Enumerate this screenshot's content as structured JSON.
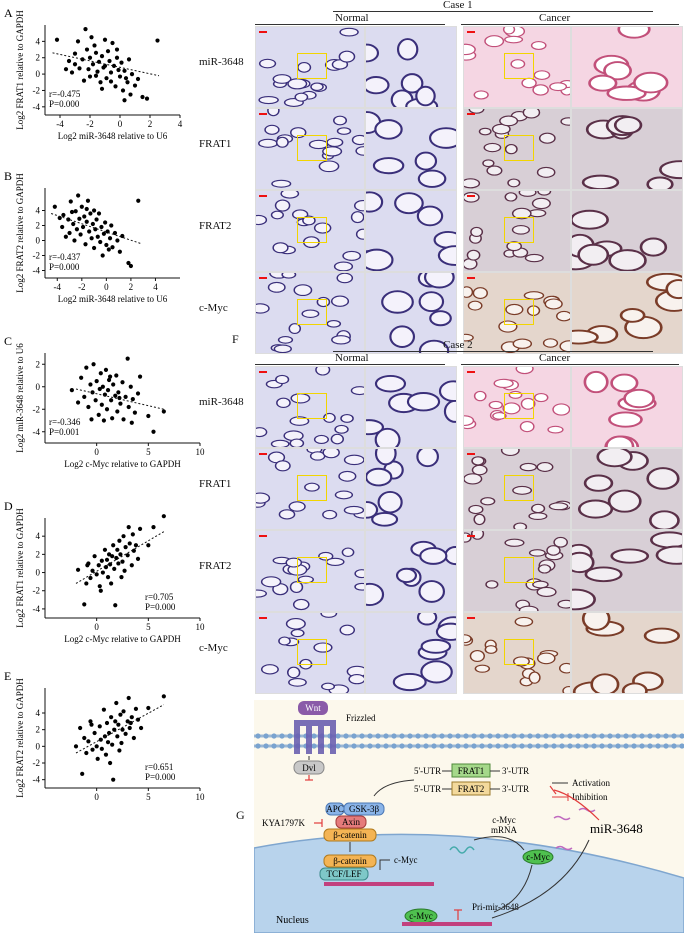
{
  "scatter_panels": {
    "A": {
      "letter": "A",
      "ylabel": "Log2 FRAT1 relative to GAPDH",
      "xlabel": "Log2 miR-3648 relative to U6",
      "r": "r=-0.475",
      "p": "P=0.000",
      "xticks": [
        "-4",
        "-2",
        "0",
        "2",
        "4"
      ],
      "yticks": [
        "4",
        "2",
        "0",
        "-2",
        "-4"
      ]
    },
    "B": {
      "letter": "B",
      "ylabel": "Log2 FRAT2 relative to GAPDH",
      "xlabel": "Log2 miR-3648 relative to U6",
      "r": "r=-0.437",
      "p": "P=0.000",
      "xticks": [
        "-4",
        "-2",
        "0",
        "2",
        "4"
      ],
      "yticks": [
        "4",
        "2",
        "0",
        "-2",
        "-4"
      ]
    },
    "C": {
      "letter": "C",
      "ylabel": "Log2 miR-3648 relative to U6",
      "xlabel": "Log2 c-Myc relative to GAPDH",
      "r": "r=-0.346",
      "p": "P=0.001",
      "xticks": [
        "0",
        "5",
        "10"
      ],
      "yticks": [
        "2",
        "0",
        "-2",
        "-4"
      ]
    },
    "D": {
      "letter": "D",
      "ylabel": "Log2 FRAT1 relative to GAPDH",
      "xlabel": "Log2 c-Myc relative to GAPDH",
      "r": "r=0.705",
      "p": "P=0.000",
      "xticks": [
        "0",
        "5",
        "10"
      ],
      "yticks": [
        "4",
        "2",
        "0",
        "-2",
        "-4"
      ]
    },
    "E": {
      "letter": "E",
      "ylabel": "Log2 FRAT2 relative to GAPDH",
      "xlabel": "Log2 c-Myc relative to GAPDH",
      "r": "r=0.651",
      "p": "P=0.000",
      "xticks": [
        "0",
        "5",
        "10"
      ],
      "yticks": [
        "4",
        "2",
        "0",
        "-2",
        "-4"
      ]
    }
  },
  "chart_data": [
    {
      "type": "scatter",
      "panel": "A",
      "xlim": [
        -5,
        4
      ],
      "ylim": [
        -5,
        6
      ],
      "trend": [
        [
          -4.5,
          2.6
        ],
        [
          2.6,
          -0.2
        ]
      ],
      "points": [
        [
          -4.2,
          4.2
        ],
        [
          -3.6,
          0.6
        ],
        [
          -3.4,
          1.6
        ],
        [
          -3.2,
          0.2
        ],
        [
          -3.0,
          2.5
        ],
        [
          -2.8,
          4.0
        ],
        [
          -2.7,
          0.7
        ],
        [
          -2.5,
          1.8
        ],
        [
          -2.3,
          5.5
        ],
        [
          -2.2,
          3.0
        ],
        [
          -2.0,
          2.0
        ],
        [
          -2.0,
          -0.3
        ],
        [
          -1.9,
          4.5
        ],
        [
          -1.8,
          1.2
        ],
        [
          -1.7,
          3.5
        ],
        [
          -1.6,
          2.6
        ],
        [
          -1.5,
          0.3
        ],
        [
          -1.4,
          1.5
        ],
        [
          -1.3,
          -1.0
        ],
        [
          -1.2,
          2.2
        ],
        [
          -1.1,
          0.8
        ],
        [
          -1.0,
          4.2
        ],
        [
          -1.0,
          1.0
        ],
        [
          -0.9,
          -0.5
        ],
        [
          -0.8,
          2.8
        ],
        [
          -0.7,
          1.6
        ],
        [
          -0.6,
          0.2
        ],
        [
          -0.5,
          3.8
        ],
        [
          -0.4,
          1.0
        ],
        [
          -0.3,
          -1.5
        ],
        [
          -0.2,
          2.0
        ],
        [
          -0.1,
          0.5
        ],
        [
          0.0,
          -0.3
        ],
        [
          0.1,
          1.4
        ],
        [
          0.2,
          -2.0
        ],
        [
          0.3,
          0.4
        ],
        [
          0.4,
          -0.5
        ],
        [
          0.5,
          -1.0
        ],
        [
          0.6,
          1.8
        ],
        [
          0.7,
          -2.5
        ],
        [
          0.8,
          0.0
        ],
        [
          1.0,
          -1.4
        ],
        [
          1.2,
          -0.6
        ],
        [
          1.5,
          -2.8
        ],
        [
          1.8,
          -3.0
        ],
        [
          2.5,
          4.1
        ],
        [
          -2.4,
          -0.8
        ],
        [
          -1.6,
          -0.2
        ],
        [
          -0.2,
          3.0
        ],
        [
          -3.0,
          1.2
        ],
        [
          -2.1,
          0.6
        ],
        [
          -1.2,
          -1.8
        ],
        [
          0.3,
          -3.2
        ],
        [
          -0.6,
          -0.9
        ]
      ]
    },
    {
      "type": "scatter",
      "panel": "B",
      "xlim": [
        -5,
        6
      ],
      "ylim": [
        -5,
        7
      ],
      "trend": [
        [
          -4.5,
          3.6
        ],
        [
          2.8,
          -0.4
        ]
      ],
      "points": [
        [
          -4.2,
          4.5
        ],
        [
          -3.6,
          1.8
        ],
        [
          -3.5,
          3.4
        ],
        [
          -3.3,
          0.5
        ],
        [
          -3.1,
          2.8
        ],
        [
          -3.0,
          1.0
        ],
        [
          -2.9,
          5.2
        ],
        [
          -2.7,
          2.2
        ],
        [
          -2.6,
          0.0
        ],
        [
          -2.5,
          3.9
        ],
        [
          -2.4,
          1.5
        ],
        [
          -2.3,
          6.0
        ],
        [
          -2.2,
          2.9
        ],
        [
          -2.1,
          0.8
        ],
        [
          -2.0,
          4.5
        ],
        [
          -1.9,
          1.8
        ],
        [
          -1.8,
          3.2
        ],
        [
          -1.7,
          -0.5
        ],
        [
          -1.6,
          2.5
        ],
        [
          -1.5,
          5.3
        ],
        [
          -1.4,
          1.2
        ],
        [
          -1.3,
          3.6
        ],
        [
          -1.2,
          0.3
        ],
        [
          -1.1,
          2.2
        ],
        [
          -1.0,
          4.0
        ],
        [
          -1.0,
          -1.0
        ],
        [
          -0.9,
          1.5
        ],
        [
          -0.8,
          2.8
        ],
        [
          -0.7,
          0.5
        ],
        [
          -0.6,
          3.6
        ],
        [
          -0.5,
          -0.2
        ],
        [
          -0.4,
          1.8
        ],
        [
          -0.3,
          -2.0
        ],
        [
          -0.2,
          0.9
        ],
        [
          -0.1,
          2.4
        ],
        [
          0.0,
          -0.6
        ],
        [
          0.1,
          1.2
        ],
        [
          0.2,
          -1.2
        ],
        [
          0.3,
          0.3
        ],
        [
          0.5,
          -0.9
        ],
        [
          0.7,
          1.0
        ],
        [
          0.9,
          0.0
        ],
        [
          1.1,
          -1.5
        ],
        [
          1.3,
          0.6
        ],
        [
          1.8,
          -3.0
        ],
        [
          2.0,
          -3.4
        ],
        [
          2.6,
          5.3
        ],
        [
          -3.8,
          3.0
        ],
        [
          -2.8,
          3.8
        ],
        [
          -1.6,
          4.2
        ],
        [
          0.4,
          2.0
        ]
      ]
    },
    {
      "type": "scatter",
      "panel": "C",
      "xlim": [
        -5,
        10
      ],
      "ylim": [
        -5,
        3
      ],
      "trend": [
        [
          -2,
          -0.2
        ],
        [
          6.5,
          -2.0
        ]
      ],
      "points": [
        [
          -2.4,
          -0.3
        ],
        [
          -1.8,
          -1.4
        ],
        [
          -1.5,
          0.8
        ],
        [
          -1.2,
          -0.9
        ],
        [
          -1.0,
          1.7
        ],
        [
          -0.8,
          -1.8
        ],
        [
          -0.6,
          0.2
        ],
        [
          -0.4,
          -0.5
        ],
        [
          -0.3,
          2.0
        ],
        [
          -0.1,
          -1.2
        ],
        [
          0.0,
          0.5
        ],
        [
          0.2,
          -2.5
        ],
        [
          0.3,
          -0.2
        ],
        [
          0.4,
          1.2
        ],
        [
          0.5,
          -1.6
        ],
        [
          0.6,
          0.0
        ],
        [
          0.8,
          -0.7
        ],
        [
          0.9,
          1.5
        ],
        [
          1.0,
          -2.0
        ],
        [
          1.1,
          -0.3
        ],
        [
          1.2,
          0.6
        ],
        [
          1.4,
          -1.2
        ],
        [
          1.5,
          -2.8
        ],
        [
          1.6,
          0.2
        ],
        [
          1.8,
          -0.8
        ],
        [
          1.9,
          1.0
        ],
        [
          2.0,
          -2.2
        ],
        [
          2.1,
          -0.5
        ],
        [
          2.3,
          -1.5
        ],
        [
          2.5,
          0.4
        ],
        [
          2.6,
          -2.9
        ],
        [
          2.8,
          -0.9
        ],
        [
          3.0,
          2.5
        ],
        [
          3.1,
          -1.8
        ],
        [
          3.3,
          0.0
        ],
        [
          3.5,
          -1.1
        ],
        [
          3.7,
          -2.3
        ],
        [
          4.0,
          -0.6
        ],
        [
          4.2,
          0.9
        ],
        [
          5.0,
          -2.6
        ],
        [
          5.5,
          -4.0
        ],
        [
          6.5,
          -2.2
        ],
        [
          -0.5,
          -2.9
        ],
        [
          1.3,
          0.9
        ],
        [
          2.2,
          -1.0
        ],
        [
          0.7,
          -3.0
        ],
        [
          3.4,
          -3.2
        ]
      ]
    },
    {
      "type": "scatter",
      "panel": "D",
      "xlim": [
        -5,
        10
      ],
      "ylim": [
        -5,
        6
      ],
      "trend": [
        [
          -2,
          -1.2
        ],
        [
          6.5,
          4.5
        ]
      ],
      "points": [
        [
          -1.8,
          0.3
        ],
        [
          -1.2,
          -3.5
        ],
        [
          -1.0,
          -1.2
        ],
        [
          -0.8,
          1.0
        ],
        [
          -0.6,
          -0.6
        ],
        [
          -0.4,
          0.2
        ],
        [
          -0.2,
          1.8
        ],
        [
          0.0,
          -0.2
        ],
        [
          0.2,
          0.8
        ],
        [
          0.3,
          -1.5
        ],
        [
          0.5,
          1.3
        ],
        [
          0.6,
          0.0
        ],
        [
          0.8,
          2.5
        ],
        [
          0.9,
          0.6
        ],
        [
          1.0,
          1.4
        ],
        [
          1.1,
          -0.5
        ],
        [
          1.2,
          2.0
        ],
        [
          1.3,
          0.9
        ],
        [
          1.5,
          1.8
        ],
        [
          1.6,
          3.0
        ],
        [
          1.7,
          0.4
        ],
        [
          1.8,
          -3.6
        ],
        [
          1.9,
          1.6
        ],
        [
          2.0,
          2.5
        ],
        [
          2.1,
          1.0
        ],
        [
          2.2,
          3.5
        ],
        [
          2.3,
          2.0
        ],
        [
          2.5,
          1.2
        ],
        [
          2.6,
          4.0
        ],
        [
          2.8,
          2.8
        ],
        [
          3.0,
          1.9
        ],
        [
          3.2,
          3.2
        ],
        [
          3.4,
          0.8
        ],
        [
          3.5,
          4.2
        ],
        [
          3.6,
          2.4
        ],
        [
          3.8,
          3.0
        ],
        [
          4.0,
          1.5
        ],
        [
          4.2,
          4.8
        ],
        [
          5.0,
          3.0
        ],
        [
          5.5,
          5.0
        ],
        [
          6.5,
          6.2
        ],
        [
          -0.9,
          0.8
        ],
        [
          1.4,
          -1.2
        ],
        [
          2.4,
          -0.5
        ],
        [
          2.7,
          0.2
        ],
        [
          0.4,
          -2.0
        ],
        [
          3.1,
          5.0
        ]
      ]
    },
    {
      "type": "scatter",
      "panel": "E",
      "xlim": [
        -5,
        10
      ],
      "ylim": [
        -5,
        7
      ],
      "trend": [
        [
          -2,
          -0.8
        ],
        [
          6.5,
          5.0
        ]
      ],
      "points": [
        [
          -2.0,
          0.0
        ],
        [
          -1.6,
          2.2
        ],
        [
          -1.4,
          -3.3
        ],
        [
          -1.2,
          1.0
        ],
        [
          -1.0,
          -0.8
        ],
        [
          -0.8,
          0.6
        ],
        [
          -0.6,
          3.0
        ],
        [
          -0.4,
          -0.4
        ],
        [
          -0.2,
          1.6
        ],
        [
          0.0,
          0.0
        ],
        [
          0.1,
          -1.5
        ],
        [
          0.3,
          2.4
        ],
        [
          0.4,
          0.8
        ],
        [
          0.5,
          -0.3
        ],
        [
          0.7,
          4.4
        ],
        [
          0.8,
          1.2
        ],
        [
          0.9,
          -1.0
        ],
        [
          1.0,
          2.8
        ],
        [
          1.1,
          0.5
        ],
        [
          1.2,
          1.6
        ],
        [
          1.4,
          3.5
        ],
        [
          1.5,
          0.2
        ],
        [
          1.6,
          -4.0
        ],
        [
          1.7,
          2.0
        ],
        [
          1.8,
          3.0
        ],
        [
          1.9,
          5.2
        ],
        [
          2.0,
          1.2
        ],
        [
          2.1,
          2.6
        ],
        [
          2.3,
          3.8
        ],
        [
          2.4,
          0.4
        ],
        [
          2.5,
          2.0
        ],
        [
          2.6,
          4.2
        ],
        [
          2.8,
          1.5
        ],
        [
          3.0,
          3.0
        ],
        [
          3.1,
          5.8
        ],
        [
          3.2,
          2.2
        ],
        [
          3.4,
          3.5
        ],
        [
          3.6,
          1.0
        ],
        [
          3.8,
          4.5
        ],
        [
          4.0,
          3.2
        ],
        [
          4.3,
          2.2
        ],
        [
          5.0,
          4.6
        ],
        [
          6.5,
          6.0
        ],
        [
          -0.5,
          2.6
        ],
        [
          2.2,
          -0.5
        ],
        [
          1.3,
          -2.0
        ],
        [
          3.3,
          2.8
        ]
      ]
    }
  ],
  "case1": {
    "title": "Case 1",
    "normal": "Normal",
    "cancer": "Cancer",
    "rows": [
      "miR-3648",
      "FRAT1",
      "FRAT2",
      "c-Myc"
    ]
  },
  "case2": {
    "letter": "F",
    "title": "Case 2",
    "normal": "Normal",
    "cancer": "Cancer",
    "rows": [
      "miR-3648",
      "FRAT1",
      "FRAT2",
      "c-Myc"
    ]
  },
  "diagram": {
    "letter": "G",
    "wnt": "Wnt",
    "frizzled": "Frizzled",
    "dvl": "Dvl",
    "utr5a": "5'-UTR",
    "frat1": "FRAT1",
    "utr3a": "3'-UTR",
    "utr5b": "5'-UTR",
    "frat2": "FRAT2",
    "utr3b": "3'-UTR",
    "activation": "Activation",
    "inhibition": "Inhibition",
    "apc": "APC",
    "gsk": "GSK-3β",
    "axin": "Axin",
    "bcat": "β-catenin",
    "kya": "KYA1797K",
    "cmyc_mrna_1": "c-Myc",
    "cmyc_mrna_2": "mRNA",
    "mir": "miR-3648",
    "bcat2": "β-catenin",
    "tcf": "TCF/LEF",
    "cmyc_gene": "c-Myc",
    "cmyc_prot": "c-Myc",
    "cmyc_prot2": "c-Myc",
    "primir": "Pri-mir-3648",
    "nucleus": "Nucleus"
  }
}
